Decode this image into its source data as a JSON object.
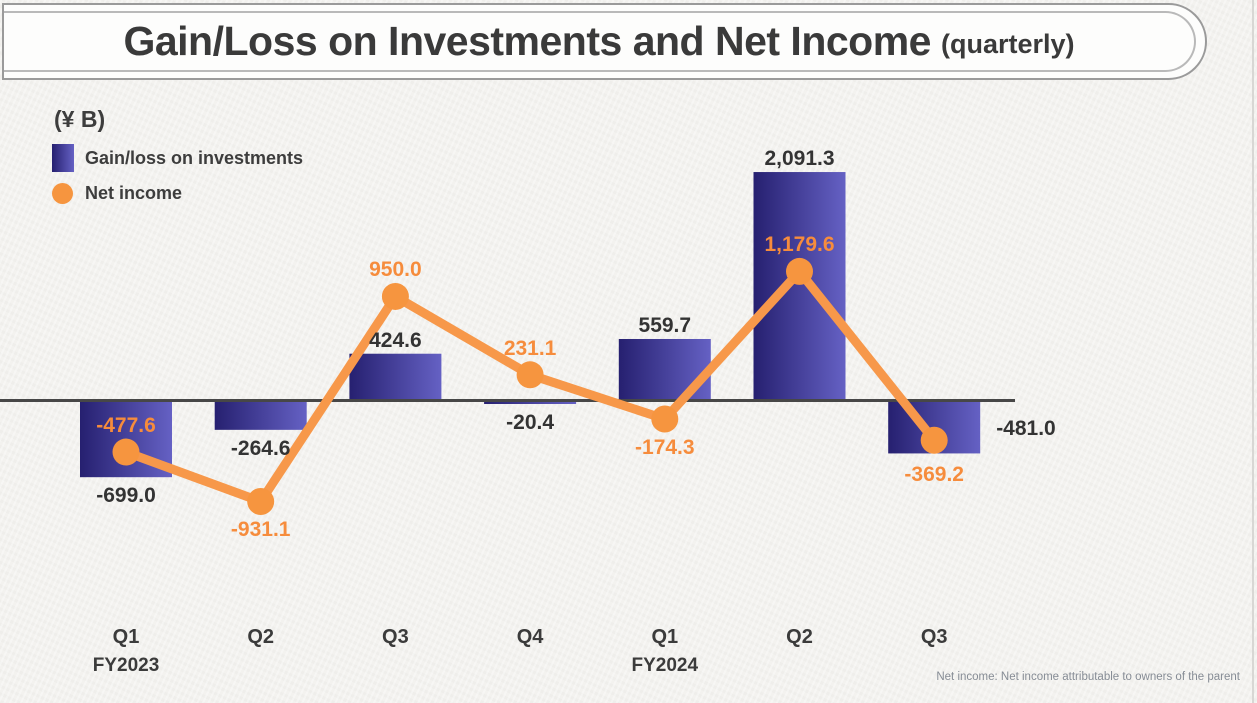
{
  "page": {
    "title": "Gain/Loss on Investments and Net Income",
    "title_suffix": "(quarterly)",
    "units_label": "(¥ B)",
    "footnote": "Net income: Net income attributable to owners of the parent"
  },
  "legend": {
    "items": [
      {
        "label": "Gain/loss on investments",
        "swatch": "bar-gradient-square"
      },
      {
        "label": "Net income",
        "swatch": "orange-dot"
      }
    ]
  },
  "colors": {
    "bar_gradient_start": "#262070",
    "bar_gradient_end": "#6561c4",
    "line": "#f7984a",
    "marker": "#f6953f",
    "net_label": "#f68c3c",
    "bar_label": "#333333",
    "axis": "#474747"
  },
  "chart_data": {
    "type": "bar",
    "note": "combined bar + line chart, values in billions of yen",
    "categories": [
      "Q1",
      "Q2",
      "Q3",
      "Q4",
      "Q1",
      "Q2",
      "Q3"
    ],
    "fiscal_year_labels": [
      {
        "index": 0,
        "label": "FY2023"
      },
      {
        "index": 4,
        "label": "FY2024"
      }
    ],
    "series": [
      {
        "name": "Gain/loss on investments",
        "type": "bar",
        "values": [
          -699.0,
          -264.6,
          424.6,
          -20.4,
          559.7,
          2091.3,
          -481.0
        ],
        "labels": [
          "-699.0",
          "-264.6",
          "424.6",
          "-20.4",
          "559.7",
          "2,091.3",
          "-481.0"
        ],
        "label_placement": [
          "below",
          "below",
          "above",
          "below",
          "above",
          "above",
          "right"
        ]
      },
      {
        "name": "Net income",
        "type": "line",
        "values": [
          -477.6,
          -931.1,
          950.0,
          231.1,
          -174.3,
          1179.6,
          -369.2
        ],
        "labels": [
          "-477.6",
          "-931.1",
          "950.0",
          "231.1",
          "-174.3",
          "1,179.6",
          "-369.2"
        ],
        "label_placement": [
          "above",
          "below",
          "above",
          "above",
          "below",
          "above",
          "below-far"
        ]
      }
    ],
    "ylabel": "(¥ B)",
    "zero_axis_shown": true,
    "grid": false,
    "legend_position": "top-left"
  }
}
